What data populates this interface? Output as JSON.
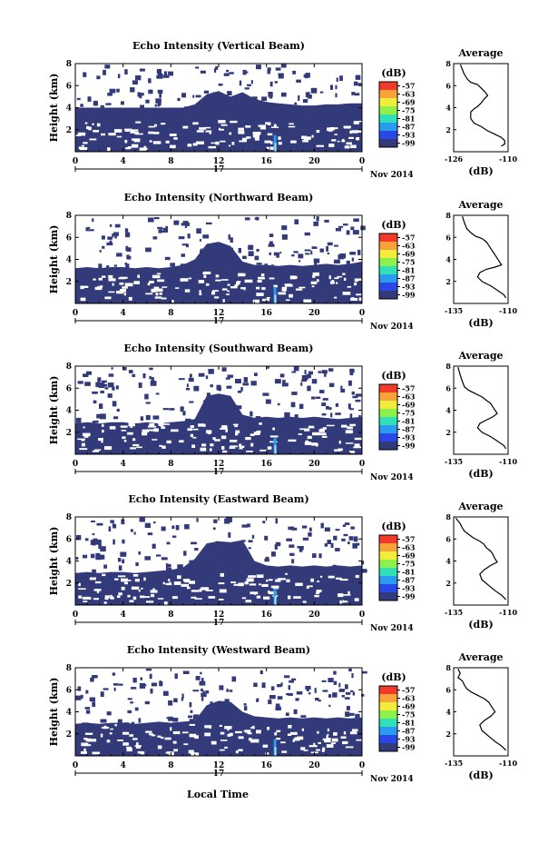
{
  "colorbar": {
    "unit": "(dB)",
    "ticks": [
      "-57",
      "-63",
      "-69",
      "-75",
      "-81",
      "-87",
      "-93",
      "-99"
    ],
    "stops": [
      "#f23a2a",
      "#f8a23a",
      "#f2ec3a",
      "#8ef04a",
      "#2fe0b8",
      "#2a9cf0",
      "#2a48e8",
      "#323a7a"
    ]
  },
  "shared": {
    "date_label": "Nov 2014",
    "day_label": "17",
    "x_ticks": [
      "0",
      "4",
      "8",
      "12",
      "16",
      "20",
      "0"
    ],
    "y_ticks": [
      "2",
      "4",
      "6",
      "8"
    ],
    "ylabel": "Height (km)",
    "xlabel": "Local Time",
    "avg_xlabel": "(dB)",
    "echo_color": "#323a7a",
    "strong_echo_color": "#2a9cf0"
  },
  "chart_data": [
    {
      "type": "heatmap",
      "title": "Echo Intensity (Vertical Beam)",
      "xlim": [
        0,
        24
      ],
      "ylim": [
        0,
        8
      ],
      "echo_tops": [
        [
          0,
          4.0
        ],
        [
          1,
          4.0
        ],
        [
          2,
          4.0
        ],
        [
          3,
          4.0
        ],
        [
          4,
          4.0
        ],
        [
          5,
          4.0
        ],
        [
          6,
          4.0
        ],
        [
          7,
          4.0
        ],
        [
          8,
          4.0
        ],
        [
          9,
          4.0
        ],
        [
          10,
          4.3
        ],
        [
          11,
          5.2
        ],
        [
          12,
          5.5
        ],
        [
          13,
          5.0
        ],
        [
          14,
          5.4
        ],
        [
          15,
          4.8
        ],
        [
          16,
          4.5
        ],
        [
          17,
          4.4
        ],
        [
          18,
          4.3
        ],
        [
          19,
          4.2
        ],
        [
          20,
          4.2
        ],
        [
          21,
          4.3
        ],
        [
          22,
          4.3
        ],
        [
          23,
          4.4
        ],
        [
          24,
          4.4
        ]
      ],
      "avg": {
        "title": "Average",
        "xlim": [
          -126,
          -110
        ],
        "xticks": [
          "-126",
          "-110"
        ],
        "yticks": [
          "2",
          "4",
          "6",
          "8"
        ],
        "x": [
          -124,
          -123,
          -122,
          -121,
          -119,
          -118,
          -117,
          -116,
          -117,
          -118,
          -119,
          -120,
          -121,
          -121,
          -120,
          -118,
          -116,
          -114,
          -112,
          -111,
          -111,
          -112
        ],
        "y": [
          7.9,
          7.1,
          6.6,
          6.3,
          6.1,
          5.8,
          5.5,
          5.1,
          4.8,
          4.4,
          4.1,
          3.9,
          3.6,
          3.0,
          2.6,
          2.3,
          1.9,
          1.6,
          1.3,
          1.0,
          0.7,
          0.5
        ]
      }
    },
    {
      "type": "heatmap",
      "title": "Echo Intensity (Northward Beam)",
      "xlim": [
        0,
        24
      ],
      "ylim": [
        0,
        8
      ],
      "echo_tops": [
        [
          0,
          3.2
        ],
        [
          1,
          3.3
        ],
        [
          2,
          3.2
        ],
        [
          3,
          3.3
        ],
        [
          4,
          3.3
        ],
        [
          5,
          3.2
        ],
        [
          6,
          3.3
        ],
        [
          7,
          3.2
        ],
        [
          8,
          3.3
        ],
        [
          9,
          3.5
        ],
        [
          10,
          4.0
        ],
        [
          11,
          5.4
        ],
        [
          12,
          5.6
        ],
        [
          13,
          5.2
        ],
        [
          14,
          3.8
        ],
        [
          15,
          3.5
        ],
        [
          16,
          3.5
        ],
        [
          17,
          3.4
        ],
        [
          18,
          3.5
        ],
        [
          19,
          3.4
        ],
        [
          20,
          3.5
        ],
        [
          21,
          3.6
        ],
        [
          22,
          3.5
        ],
        [
          23,
          3.6
        ],
        [
          24,
          3.8
        ]
      ],
      "avg": {
        "title": "Average",
        "xlim": [
          -135,
          -110
        ],
        "xticks": [
          "-135",
          "-110"
        ],
        "yticks": [
          "2",
          "4",
          "6",
          "8"
        ],
        "x": [
          -131,
          -130,
          -129,
          -127,
          -125,
          -122,
          -120,
          -119,
          -118,
          -117,
          -116,
          -115,
          -114,
          -113,
          -116,
          -120,
          -123,
          -124,
          -122,
          -118,
          -115,
          -112,
          -111
        ],
        "y": [
          7.9,
          7.3,
          6.8,
          6.4,
          6.1,
          5.9,
          5.6,
          5.3,
          5.0,
          4.7,
          4.4,
          4.1,
          3.8,
          3.5,
          3.3,
          3.1,
          2.8,
          2.4,
          2.0,
          1.6,
          1.2,
          0.8,
          0.5
        ]
      }
    },
    {
      "type": "heatmap",
      "title": "Echo Intensity (Southward Beam)",
      "xlim": [
        0,
        24
      ],
      "ylim": [
        0,
        8
      ],
      "echo_tops": [
        [
          0,
          2.8
        ],
        [
          1,
          2.9
        ],
        [
          2,
          2.8
        ],
        [
          3,
          2.9
        ],
        [
          4,
          2.9
        ],
        [
          5,
          2.8
        ],
        [
          6,
          2.9
        ],
        [
          7,
          2.8
        ],
        [
          8,
          2.9
        ],
        [
          9,
          3.0
        ],
        [
          10,
          3.2
        ],
        [
          11,
          5.3
        ],
        [
          12,
          5.5
        ],
        [
          13,
          5.3
        ],
        [
          14,
          3.6
        ],
        [
          15,
          3.3
        ],
        [
          16,
          3.4
        ],
        [
          17,
          3.3
        ],
        [
          18,
          3.4
        ],
        [
          19,
          3.3
        ],
        [
          20,
          3.4
        ],
        [
          21,
          3.3
        ],
        [
          22,
          3.2
        ],
        [
          23,
          3.3
        ],
        [
          24,
          3.4
        ]
      ],
      "avg": {
        "title": "Average",
        "xlim": [
          -135,
          -110
        ],
        "xticks": [
          "-135",
          "-110"
        ],
        "yticks": [
          "2",
          "4",
          "6",
          "8"
        ],
        "x": [
          -133,
          -132,
          -131,
          -130,
          -128,
          -125,
          -122,
          -120,
          -118,
          -117,
          -116,
          -115,
          -117,
          -120,
          -123,
          -124,
          -122,
          -118,
          -115,
          -112,
          -111
        ],
        "y": [
          7.9,
          7.2,
          6.6,
          6.1,
          5.8,
          5.5,
          5.2,
          4.9,
          4.6,
          4.3,
          4.0,
          3.7,
          3.4,
          3.1,
          2.8,
          2.4,
          2.0,
          1.6,
          1.2,
          0.8,
          0.5
        ]
      }
    },
    {
      "type": "heatmap",
      "title": "Echo Intensity (Eastward Beam)",
      "xlim": [
        0,
        24
      ],
      "ylim": [
        0,
        8
      ],
      "echo_tops": [
        [
          0,
          2.9
        ],
        [
          1,
          3.0
        ],
        [
          2,
          2.9
        ],
        [
          3,
          3.0
        ],
        [
          4,
          3.0
        ],
        [
          5,
          2.9
        ],
        [
          6,
          3.0
        ],
        [
          7,
          3.1
        ],
        [
          8,
          3.2
        ],
        [
          9,
          3.4
        ],
        [
          10,
          4.2
        ],
        [
          11,
          5.6
        ],
        [
          12,
          5.8
        ],
        [
          13,
          5.7
        ],
        [
          14,
          5.9
        ],
        [
          15,
          4.0
        ],
        [
          16,
          3.6
        ],
        [
          17,
          3.5
        ],
        [
          18,
          3.6
        ],
        [
          19,
          3.5
        ],
        [
          20,
          3.6
        ],
        [
          21,
          3.5
        ],
        [
          22,
          3.6
        ],
        [
          23,
          3.5
        ],
        [
          24,
          3.6
        ]
      ],
      "avg": {
        "title": "Average",
        "xlim": [
          -135,
          -110
        ],
        "xticks": [
          "-135",
          "-110"
        ],
        "yticks": [
          "2",
          "4",
          "6",
          "8"
        ],
        "x": [
          -134,
          -132,
          -131,
          -130,
          -128,
          -126,
          -123,
          -121,
          -120,
          -118,
          -117,
          -116,
          -115,
          -118,
          -121,
          -123,
          -122,
          -119,
          -116,
          -113,
          -111
        ],
        "y": [
          7.9,
          7.4,
          7.0,
          6.7,
          6.4,
          6.1,
          5.8,
          5.5,
          5.2,
          4.9,
          4.6,
          4.2,
          3.9,
          3.6,
          3.2,
          2.8,
          2.3,
          1.8,
          1.3,
          0.9,
          0.5
        ]
      }
    },
    {
      "type": "heatmap",
      "title": "Echo Intensity (Westward Beam)",
      "xlim": [
        0,
        24
      ],
      "ylim": [
        0,
        8
      ],
      "echo_tops": [
        [
          0,
          2.9
        ],
        [
          1,
          3.0
        ],
        [
          2,
          2.9
        ],
        [
          3,
          3.0
        ],
        [
          4,
          3.0
        ],
        [
          5,
          2.9
        ],
        [
          6,
          3.0
        ],
        [
          7,
          3.1
        ],
        [
          8,
          3.0
        ],
        [
          9,
          3.1
        ],
        [
          10,
          3.2
        ],
        [
          11,
          4.6
        ],
        [
          12,
          5.0
        ],
        [
          13,
          4.9
        ],
        [
          14,
          4.0
        ],
        [
          15,
          3.6
        ],
        [
          16,
          3.5
        ],
        [
          17,
          3.4
        ],
        [
          18,
          3.5
        ],
        [
          19,
          3.4
        ],
        [
          20,
          3.5
        ],
        [
          21,
          3.4
        ],
        [
          22,
          3.5
        ],
        [
          23,
          3.4
        ],
        [
          24,
          3.5
        ]
      ],
      "avg": {
        "title": "Average",
        "xlim": [
          -135,
          -110
        ],
        "xticks": [
          "-135",
          "-110"
        ],
        "yticks": [
          "2",
          "4",
          "6",
          "8"
        ],
        "x": [
          -133,
          -132,
          -133,
          -131,
          -130,
          -129,
          -127,
          -124,
          -121,
          -119,
          -118,
          -117,
          -116,
          -118,
          -121,
          -123,
          -122,
          -119,
          -116,
          -113,
          -111
        ],
        "y": [
          7.9,
          7.5,
          7.1,
          6.8,
          6.4,
          6.1,
          5.8,
          5.5,
          5.2,
          4.9,
          4.6,
          4.3,
          4.0,
          3.6,
          3.2,
          2.8,
          2.3,
          1.8,
          1.3,
          0.9,
          0.5
        ]
      }
    }
  ]
}
